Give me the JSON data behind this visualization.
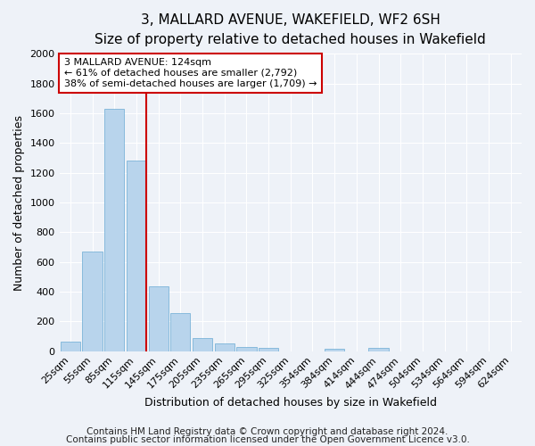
{
  "title": "3, MALLARD AVENUE, WAKEFIELD, WF2 6SH",
  "subtitle": "Size of property relative to detached houses in Wakefield",
  "xlabel": "Distribution of detached houses by size in Wakefield",
  "ylabel": "Number of detached properties",
  "bar_labels": [
    "25sqm",
    "55sqm",
    "85sqm",
    "115sqm",
    "145sqm",
    "175sqm",
    "205sqm",
    "235sqm",
    "265sqm",
    "295sqm",
    "325sqm",
    "354sqm",
    "384sqm",
    "414sqm",
    "444sqm",
    "474sqm",
    "504sqm",
    "534sqm",
    "564sqm",
    "594sqm",
    "624sqm"
  ],
  "bar_values": [
    65,
    670,
    1630,
    1285,
    435,
    255,
    90,
    50,
    30,
    20,
    0,
    0,
    15,
    0,
    20,
    0,
    0,
    0,
    0,
    0,
    0
  ],
  "bar_color": "#b8d4ec",
  "bar_edge_color": "#6aaad4",
  "ylim": [
    0,
    2000
  ],
  "yticks": [
    0,
    200,
    400,
    600,
    800,
    1000,
    1200,
    1400,
    1600,
    1800,
    2000
  ],
  "annotation_title": "3 MALLARD AVENUE: 124sqm",
  "annotation_line1": "← 61% of detached houses are smaller (2,792)",
  "annotation_line2": "38% of semi-detached houses are larger (1,709) →",
  "annotation_box_facecolor": "#ffffff",
  "annotation_box_edgecolor": "#cc0000",
  "red_line_color": "#cc0000",
  "footer1": "Contains HM Land Registry data © Crown copyright and database right 2024.",
  "footer2": "Contains public sector information licensed under the Open Government Licence v3.0.",
  "bg_color": "#eef2f8",
  "grid_color": "#ffffff",
  "title_fontsize": 11,
  "subtitle_fontsize": 10,
  "axis_label_fontsize": 9,
  "tick_fontsize": 8,
  "annotation_fontsize": 8,
  "footer_fontsize": 7.5
}
